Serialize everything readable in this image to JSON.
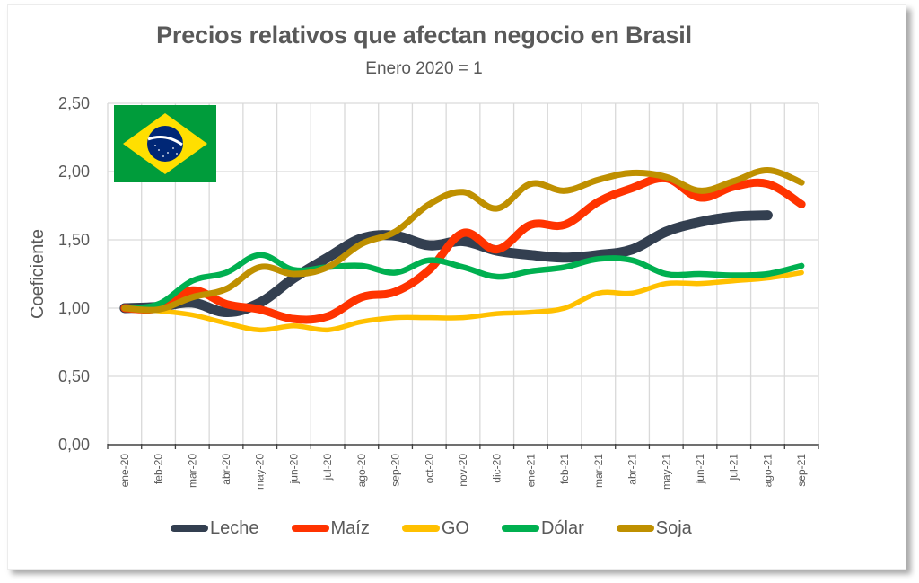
{
  "chart_data": {
    "type": "line",
    "title": "Precios relativos que afectan negocio en Brasil",
    "subtitle": "Enero 2020 = 1",
    "xlabel": "",
    "ylabel": "Coeficiente",
    "ylim": [
      0,
      2.5
    ],
    "yticks": [
      "0,00",
      "0,50",
      "1,00",
      "1,50",
      "2,00",
      "2,50"
    ],
    "ytick_values": [
      0,
      0.5,
      1.0,
      1.5,
      2.0,
      2.5
    ],
    "grid": true,
    "legend_position": "bottom",
    "categories": [
      "ene-20",
      "feb-20",
      "mar-20",
      "abr-20",
      "may-20",
      "jun-20",
      "jul-20",
      "ago-20",
      "sep-20",
      "oct-20",
      "nov-20",
      "dic-20",
      "ene-21",
      "feb-21",
      "mar-21",
      "abr-21",
      "may-21",
      "jun-21",
      "jul-21",
      "ago-21",
      "sep-21"
    ],
    "series": [
      {
        "name": "Leche",
        "color": "#333F50",
        "values": [
          1.0,
          1.01,
          1.04,
          0.97,
          1.04,
          1.22,
          1.37,
          1.51,
          1.53,
          1.46,
          1.49,
          1.42,
          1.39,
          1.37,
          1.39,
          1.43,
          1.56,
          1.63,
          1.67,
          1.68,
          null
        ]
      },
      {
        "name": "Maíz",
        "color": "#FF3300",
        "values": [
          1.0,
          1.0,
          1.13,
          1.03,
          0.99,
          0.92,
          0.94,
          1.08,
          1.12,
          1.28,
          1.55,
          1.43,
          1.61,
          1.61,
          1.78,
          1.88,
          1.95,
          1.81,
          1.89,
          1.91,
          1.76
        ]
      },
      {
        "name": "GO",
        "color": "#FFC000",
        "values": [
          1.0,
          0.98,
          0.95,
          0.89,
          0.84,
          0.87,
          0.84,
          0.9,
          0.93,
          0.93,
          0.93,
          0.96,
          0.97,
          1.0,
          1.11,
          1.11,
          1.18,
          1.18,
          1.2,
          1.22,
          1.26
        ]
      },
      {
        "name": "Dólar",
        "color": "#00B050",
        "values": [
          1.0,
          1.03,
          1.2,
          1.26,
          1.39,
          1.28,
          1.3,
          1.31,
          1.26,
          1.35,
          1.3,
          1.23,
          1.27,
          1.3,
          1.36,
          1.35,
          1.25,
          1.25,
          1.24,
          1.25,
          1.31
        ]
      },
      {
        "name": "Soja",
        "color": "#BF9000",
        "values": [
          1.0,
          0.99,
          1.08,
          1.14,
          1.3,
          1.25,
          1.3,
          1.47,
          1.56,
          1.76,
          1.85,
          1.73,
          1.91,
          1.86,
          1.94,
          1.99,
          1.96,
          1.86,
          1.93,
          2.01,
          1.92
        ]
      }
    ],
    "image_annotation": "brazil-flag"
  }
}
